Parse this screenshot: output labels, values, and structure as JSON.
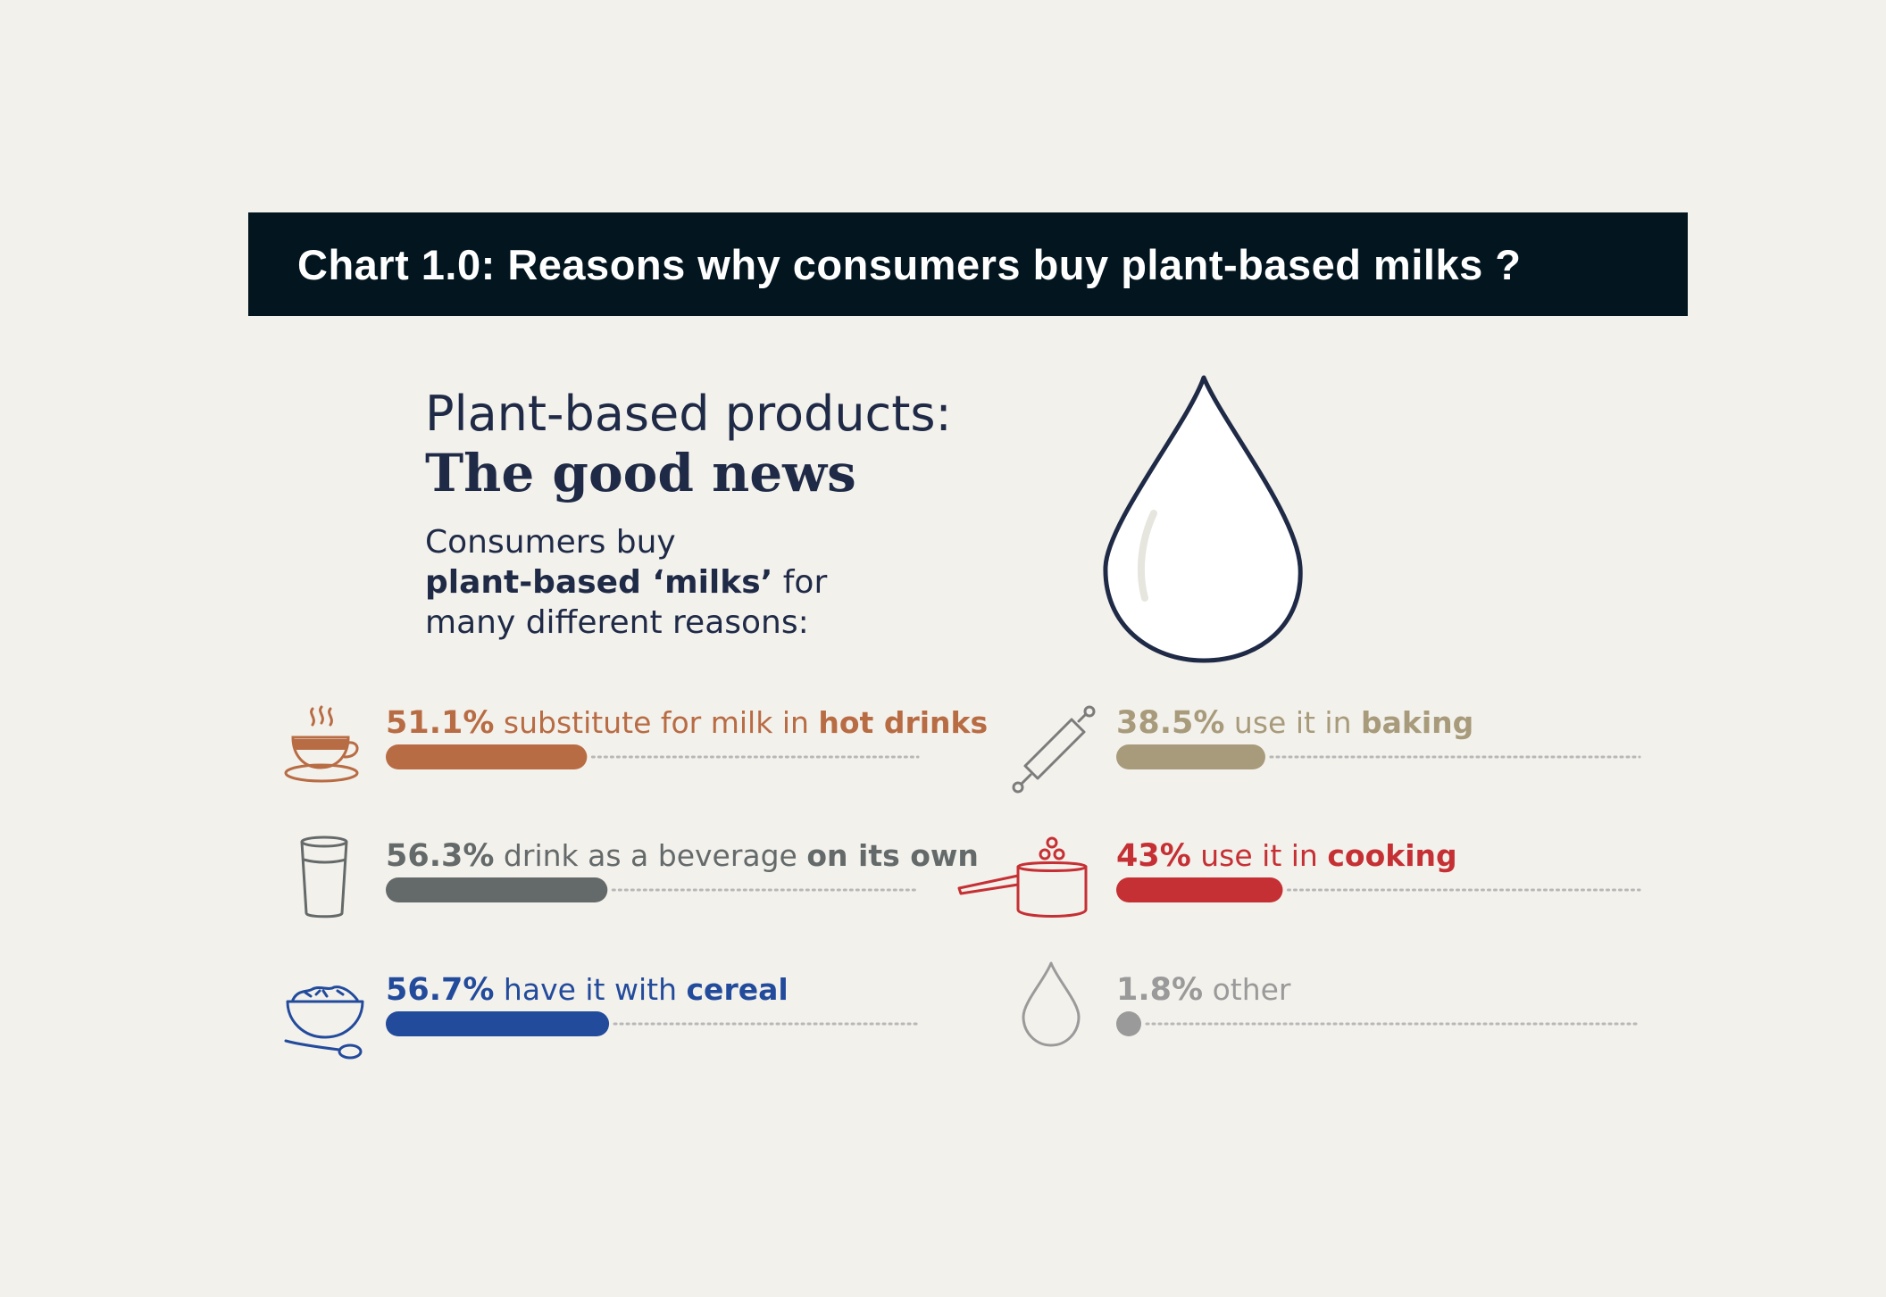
{
  "title": "Chart 1.0: Reasons why consumers buy plant-based milks ?",
  "headline": {
    "line1": "Plant-based products:",
    "line2": "The good news"
  },
  "intro": {
    "line1": "Consumers buy",
    "line2_bold": "plant-based ‘milks’",
    "line2_rest": " for",
    "line3": "many different reasons:"
  },
  "icons": [
    "hot-drink-cup-icon",
    "glass-icon",
    "cereal-bowl-icon",
    "rolling-pin-icon",
    "cooking-pot-icon",
    "drop-icon"
  ],
  "chart_data": {
    "type": "bar",
    "title": "Chart 1.0: Reasons why consumers buy plant-based milks ?",
    "unit": "%",
    "xlim": [
      0,
      100
    ],
    "categories": [
      "substitute for milk in hot drinks",
      "drink as a beverage on its own",
      "have it with cereal",
      "use it in baking",
      "use it in cooking",
      "other"
    ],
    "values": [
      51.1,
      56.3,
      56.7,
      38.5,
      43,
      1.8
    ],
    "items": [
      {
        "pct": "51.1%",
        "text": " substitute for milk in ",
        "emph": "hot drinks",
        "value": 51.1,
        "color": "#b86c44",
        "icon": "hot-drink-cup-icon"
      },
      {
        "pct": "56.3%",
        "text": " drink as a beverage ",
        "emph": "on its own",
        "value": 56.3,
        "color": "#646a6a",
        "icon": "glass-icon"
      },
      {
        "pct": "56.7%",
        "text": " have it with ",
        "emph": "cereal",
        "value": 56.7,
        "color": "#234b9c",
        "icon": "cereal-bowl-icon"
      },
      {
        "pct": "38.5%",
        "text": " use it in ",
        "emph": "baking",
        "value": 38.5,
        "color": "#a89b7b",
        "icon": "rolling-pin-icon"
      },
      {
        "pct": "43%",
        "text": " use it in ",
        "emph": "cooking",
        "value": 43,
        "color": "#c53034",
        "icon": "cooking-pot-icon"
      },
      {
        "pct": "1.8%",
        "text": " other",
        "emph": "",
        "value": 1.8,
        "color": "#9a9a9a",
        "icon": "drop-icon"
      }
    ],
    "track_color": "#b8b8b8"
  }
}
